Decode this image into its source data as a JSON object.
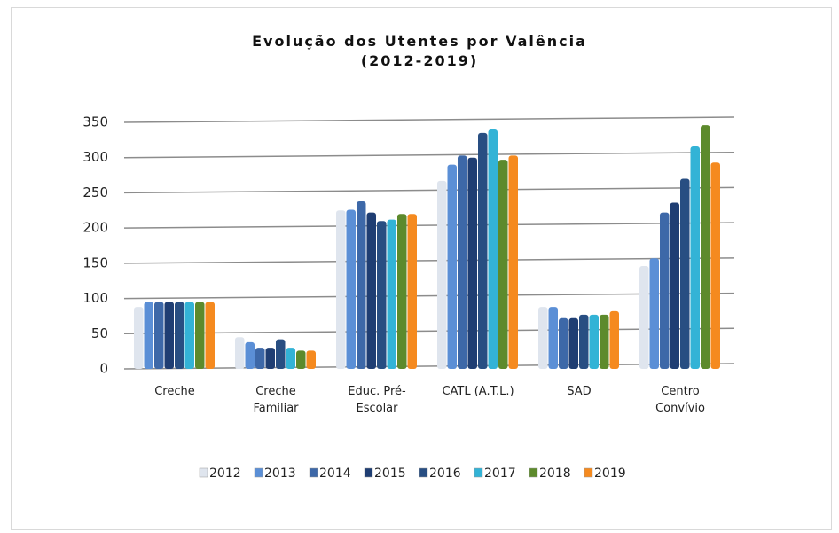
{
  "chart_data": {
    "type": "bar",
    "title": "Evolução dos Utentes por Valência\n(2012-2019)",
    "categories": [
      "Creche",
      "Creche Familiar",
      "Educ. Pré-Escolar",
      "CATL (A.T.L.)",
      "SAD",
      "Centro Convívio"
    ],
    "series": [
      {
        "name": "2012",
        "color": "#dfe5ee",
        "values": [
          88,
          45,
          225,
          267,
          88,
          146
        ]
      },
      {
        "name": "2013",
        "color": "#5b8fd6",
        "values": [
          95,
          38,
          226,
          290,
          88,
          157
        ]
      },
      {
        "name": "2014",
        "color": "#3d68a8",
        "values": [
          95,
          30,
          238,
          303,
          72,
          222
        ]
      },
      {
        "name": "2015",
        "color": "#1f3e73",
        "values": [
          95,
          30,
          222,
          300,
          72,
          236
        ]
      },
      {
        "name": "2016",
        "color": "#284e82",
        "values": [
          95,
          42,
          210,
          335,
          77,
          270
        ]
      },
      {
        "name": "2017",
        "color": "#33b3d6",
        "values": [
          95,
          30,
          212,
          340,
          77,
          316
        ]
      },
      {
        "name": "2018",
        "color": "#5d8a2c",
        "values": [
          95,
          26,
          220,
          297,
          77,
          346
        ]
      },
      {
        "name": "2019",
        "color": "#f58a1f",
        "values": [
          95,
          26,
          220,
          303,
          82,
          293
        ]
      }
    ],
    "ylim": [
      0,
      350
    ],
    "yticks": [
      0,
      50,
      100,
      150,
      200,
      250,
      300,
      350
    ],
    "grid": true,
    "legend": "bottom"
  }
}
